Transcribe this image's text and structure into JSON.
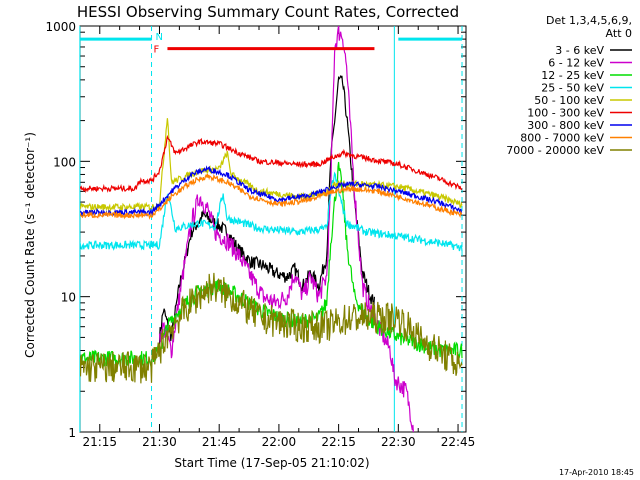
{
  "chart_data": {
    "type": "line",
    "title": "HESSI Observing Summary Count Rates, Corrected",
    "xlabel": "Start Time (17-Sep-05 21:10:02)",
    "ylabel": "Corrected Count Rate (s⁻¹ detector⁻¹)",
    "y_scale": "log",
    "ylim": [
      1,
      1000
    ],
    "y_ticks": [
      1,
      10,
      100,
      1000
    ],
    "y_tick_labels": [
      "1",
      "10",
      "100",
      "1000"
    ],
    "x_time_range": [
      "21:10:02",
      "22:47:00"
    ],
    "x_ticks": [
      "21:15",
      "21:30",
      "21:45",
      "22:00",
      "22:15",
      "22:30",
      "22:45"
    ],
    "legend_header": [
      "Det 1,3,4,5,6,9,",
      "Att 0"
    ],
    "legend_position": "right",
    "footer": "17-Apr-2010 18:45",
    "flags": {
      "night": {
        "label": "N",
        "color": "#00e5ee",
        "intervals": [
          [
            "21:10",
            "21:28"
          ],
          [
            "22:30",
            "22:46"
          ]
        ],
        "level": 800
      },
      "flare": {
        "label": "F",
        "color": "#ee0000",
        "intervals": [
          [
            "21:32",
            "22:24"
          ]
        ],
        "level": 680
      }
    },
    "vertical_lines": {
      "color": "#00e5ee",
      "solid": [
        "21:10",
        "22:29"
      ],
      "dashed": [
        "21:28",
        "22:46"
      ]
    },
    "series": [
      {
        "name": "3 - 6 keV",
        "color": "#000000",
        "noise": 0.05,
        "points": [
          [
            "21:30",
            5
          ],
          [
            "21:31",
            8
          ],
          [
            "21:33",
            5
          ],
          [
            "21:35",
            12
          ],
          [
            "21:38",
            30
          ],
          [
            "21:41",
            40
          ],
          [
            "21:44",
            35
          ],
          [
            "21:47",
            30
          ],
          [
            "21:50",
            22
          ],
          [
            "21:53",
            18
          ],
          [
            "21:56",
            17
          ],
          [
            "21:59",
            15
          ],
          [
            "22:02",
            14
          ],
          [
            "22:04",
            16
          ],
          [
            "22:06",
            12
          ],
          [
            "22:08",
            15
          ],
          [
            "22:10",
            12
          ],
          [
            "22:12",
            20
          ],
          [
            "22:13",
            100
          ],
          [
            "22:15",
            400
          ],
          [
            "22:16",
            380
          ],
          [
            "22:17",
            220
          ],
          [
            "22:19",
            50
          ],
          [
            "22:21",
            15
          ],
          [
            "22:23",
            10
          ],
          [
            "22:24",
            9
          ]
        ]
      },
      {
        "name": "6 - 12 keV",
        "color": "#cc00cc",
        "noise": 0.07,
        "points": [
          [
            "21:30",
            5
          ],
          [
            "21:31",
            6
          ],
          [
            "21:33",
            4
          ],
          [
            "21:35",
            10
          ],
          [
            "21:38",
            35
          ],
          [
            "21:40",
            55
          ],
          [
            "21:42",
            45
          ],
          [
            "21:44",
            30
          ],
          [
            "21:47",
            26
          ],
          [
            "21:50",
            20
          ],
          [
            "21:53",
            14
          ],
          [
            "21:56",
            10
          ],
          [
            "21:59",
            9
          ],
          [
            "22:02",
            10
          ],
          [
            "22:04",
            15
          ],
          [
            "22:06",
            10
          ],
          [
            "22:08",
            14
          ],
          [
            "22:10",
            10
          ],
          [
            "22:12",
            14
          ],
          [
            "22:13",
            60
          ],
          [
            "22:14",
            700
          ],
          [
            "22:15",
            900
          ],
          [
            "22:16",
            850
          ],
          [
            "22:17",
            500
          ],
          [
            "22:19",
            60
          ],
          [
            "22:21",
            12
          ],
          [
            "22:23",
            8
          ],
          [
            "22:25",
            6
          ],
          [
            "22:28",
            4
          ],
          [
            "22:29",
            2.5
          ],
          [
            "22:32",
            2
          ],
          [
            "22:34",
            1
          ]
        ]
      },
      {
        "name": "12 - 25 keV",
        "color": "#00dd00",
        "noise": 0.06,
        "points": [
          [
            "21:10",
            3.5
          ],
          [
            "21:28",
            3.5
          ],
          [
            "21:30",
            4
          ],
          [
            "21:32",
            6
          ],
          [
            "21:35",
            8
          ],
          [
            "21:40",
            11
          ],
          [
            "21:45",
            12
          ],
          [
            "21:50",
            10
          ],
          [
            "21:55",
            8
          ],
          [
            "22:00",
            7
          ],
          [
            "22:05",
            6.5
          ],
          [
            "22:10",
            7
          ],
          [
            "22:12",
            9
          ],
          [
            "22:13",
            25
          ],
          [
            "22:14",
            50
          ],
          [
            "22:15",
            90
          ],
          [
            "22:16",
            60
          ],
          [
            "22:17",
            25
          ],
          [
            "22:19",
            10
          ],
          [
            "22:22",
            7
          ],
          [
            "22:25",
            6
          ],
          [
            "22:30",
            5
          ],
          [
            "22:35",
            4.5
          ],
          [
            "22:40",
            4
          ],
          [
            "22:46",
            4
          ]
        ]
      },
      {
        "name": "25 - 50 keV",
        "color": "#00e5ee",
        "noise": 0.03,
        "points": [
          [
            "21:10",
            24
          ],
          [
            "21:28",
            24
          ],
          [
            "21:30",
            24
          ],
          [
            "21:32",
            60
          ],
          [
            "21:34",
            32
          ],
          [
            "21:40",
            35
          ],
          [
            "21:44",
            33
          ],
          [
            "21:46",
            58
          ],
          [
            "21:47",
            38
          ],
          [
            "21:55",
            32
          ],
          [
            "22:05",
            30
          ],
          [
            "22:12",
            32
          ],
          [
            "22:13",
            60
          ],
          [
            "22:14",
            80
          ],
          [
            "22:15",
            60
          ],
          [
            "22:17",
            35
          ],
          [
            "22:22",
            30
          ],
          [
            "22:30",
            28
          ],
          [
            "22:40",
            25
          ],
          [
            "22:46",
            23
          ]
        ]
      },
      {
        "name": "50 - 100 keV",
        "color": "#c8c800",
        "noise": 0.025,
        "points": [
          [
            "21:10",
            46
          ],
          [
            "21:28",
            46
          ],
          [
            "21:30",
            48
          ],
          [
            "21:32",
            220
          ],
          [
            "21:33",
            70
          ],
          [
            "21:40",
            85
          ],
          [
            "21:45",
            88
          ],
          [
            "21:47",
            115
          ],
          [
            "21:48",
            80
          ],
          [
            "21:55",
            60
          ],
          [
            "22:05",
            55
          ],
          [
            "22:10",
            57
          ],
          [
            "22:12",
            60
          ],
          [
            "22:14",
            68
          ],
          [
            "22:20",
            68
          ],
          [
            "22:30",
            65
          ],
          [
            "22:40",
            55
          ],
          [
            "22:46",
            48
          ]
        ]
      },
      {
        "name": "100 - 300 keV",
        "color": "#ee0000",
        "noise": 0.02,
        "points": [
          [
            "21:10",
            63
          ],
          [
            "21:24",
            63
          ],
          [
            "21:25",
            72
          ],
          [
            "21:28",
            72
          ],
          [
            "21:30",
            85
          ],
          [
            "21:32",
            150
          ],
          [
            "21:34",
            115
          ],
          [
            "21:40",
            140
          ],
          [
            "21:45",
            135
          ],
          [
            "21:50",
            115
          ],
          [
            "21:55",
            100
          ],
          [
            "22:05",
            95
          ],
          [
            "22:10",
            95
          ],
          [
            "22:13",
            105
          ],
          [
            "22:16",
            115
          ],
          [
            "22:20",
            108
          ],
          [
            "22:30",
            95
          ],
          [
            "22:40",
            75
          ],
          [
            "22:46",
            63
          ]
        ]
      },
      {
        "name": "300 - 800 keV",
        "color": "#0000ee",
        "noise": 0.02,
        "points": [
          [
            "21:10",
            42
          ],
          [
            "21:28",
            42
          ],
          [
            "21:30",
            48
          ],
          [
            "21:33",
            60
          ],
          [
            "21:38",
            80
          ],
          [
            "21:42",
            88
          ],
          [
            "21:47",
            80
          ],
          [
            "21:53",
            60
          ],
          [
            "22:00",
            52
          ],
          [
            "22:08",
            56
          ],
          [
            "22:14",
            65
          ],
          [
            "22:18",
            68
          ],
          [
            "22:25",
            65
          ],
          [
            "22:32",
            58
          ],
          [
            "22:40",
            50
          ],
          [
            "22:46",
            43
          ]
        ]
      },
      {
        "name": "800 - 7000 keV",
        "color": "#ff8000",
        "noise": 0.02,
        "points": [
          [
            "21:10",
            40
          ],
          [
            "21:28",
            40
          ],
          [
            "21:30",
            44
          ],
          [
            "21:33",
            55
          ],
          [
            "21:38",
            70
          ],
          [
            "21:42",
            78
          ],
          [
            "21:47",
            70
          ],
          [
            "21:53",
            55
          ],
          [
            "22:00",
            48
          ],
          [
            "22:08",
            52
          ],
          [
            "22:14",
            60
          ],
          [
            "22:18",
            63
          ],
          [
            "22:25",
            60
          ],
          [
            "22:32",
            53
          ],
          [
            "22:40",
            45
          ],
          [
            "22:46",
            40
          ]
        ]
      },
      {
        "name": "7000 - 20000 keV",
        "color": "#808000",
        "noise": 0.12,
        "points": [
          [
            "21:10",
            3
          ],
          [
            "21:28",
            3
          ],
          [
            "21:30",
            4
          ],
          [
            "21:33",
            6
          ],
          [
            "21:38",
            9
          ],
          [
            "21:43",
            12
          ],
          [
            "21:48",
            10
          ],
          [
            "21:55",
            7
          ],
          [
            "22:05",
            6
          ],
          [
            "22:12",
            6
          ],
          [
            "22:18",
            7
          ],
          [
            "22:25",
            7
          ],
          [
            "22:30",
            7
          ],
          [
            "22:35",
            5
          ],
          [
            "22:40",
            4
          ],
          [
            "22:46",
            3
          ]
        ]
      }
    ]
  }
}
